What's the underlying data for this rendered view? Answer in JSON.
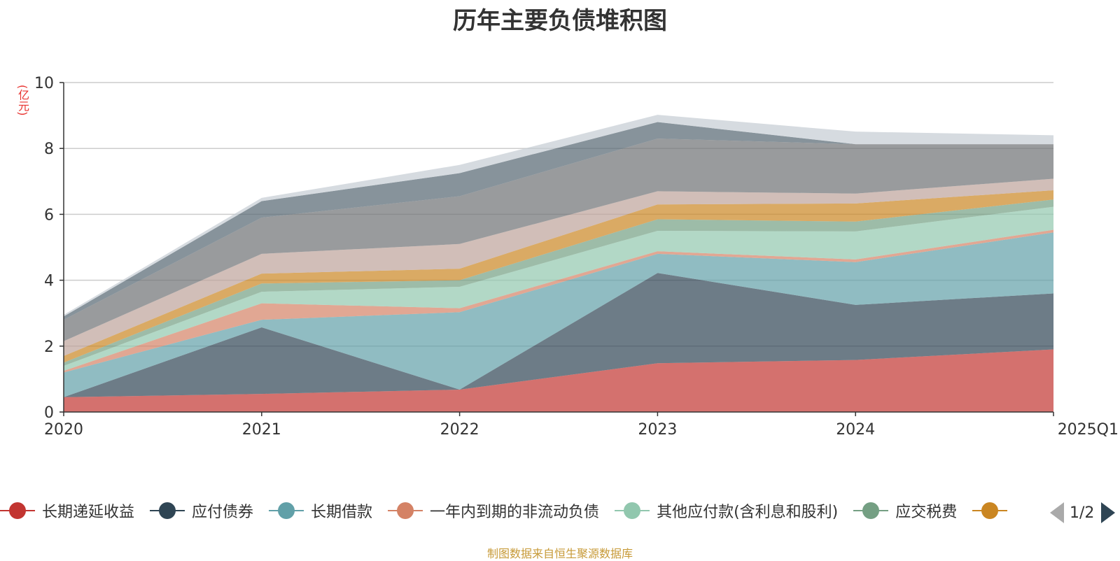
{
  "chart_data": {
    "type": "area",
    "title": "历年主要负债堆积图",
    "ylabel": "(亿元)",
    "xlabel": "",
    "ylim": [
      0,
      10
    ],
    "yticks": [
      0,
      2,
      4,
      6,
      8,
      10
    ],
    "categories": [
      "2020",
      "2021",
      "2022",
      "2023",
      "2024",
      "2025Q1"
    ],
    "stacked": true,
    "grid": true,
    "series": [
      {
        "name": "长期递延收益",
        "color": "#c23531",
        "values": [
          0.45,
          0.55,
          0.68,
          1.48,
          1.58,
          1.9
        ]
      },
      {
        "name": "应付债券",
        "color": "#2f4554",
        "values": [
          0.0,
          2.02,
          0.0,
          2.74,
          1.67,
          1.7
        ]
      },
      {
        "name": "长期借款",
        "color": "#61a0a8",
        "values": [
          0.75,
          0.23,
          2.35,
          0.58,
          1.3,
          1.85
        ]
      },
      {
        "name": "一年内到期的非流动负债",
        "color": "#d48265",
        "values": [
          0.05,
          0.5,
          0.12,
          0.08,
          0.08,
          0.08
        ]
      },
      {
        "name": "其他应付款(含利息和股利)",
        "color": "#91c7ae",
        "values": [
          0.15,
          0.35,
          0.65,
          0.62,
          0.85,
          0.7
        ]
      },
      {
        "name": "应交税费",
        "color": "#749f83",
        "values": [
          0.1,
          0.25,
          0.2,
          0.35,
          0.3,
          0.22
        ]
      },
      {
        "name": "",
        "color": "#ca8622",
        "values": [
          0.2,
          0.3,
          0.35,
          0.45,
          0.55,
          0.28
        ]
      },
      {
        "name": "",
        "color": "#bda29a",
        "values": [
          0.45,
          0.6,
          0.75,
          0.4,
          0.3,
          0.35
        ]
      },
      {
        "name": "",
        "color": "#6e7074",
        "values": [
          0.65,
          1.1,
          1.45,
          1.6,
          1.5,
          1.05
        ]
      },
      {
        "name": "",
        "color": "#546570",
        "values": [
          0.1,
          0.5,
          0.7,
          0.5,
          0.0,
          0.0
        ]
      },
      {
        "name": "",
        "color": "#c4ccd3",
        "values": [
          0.05,
          0.1,
          0.25,
          0.22,
          0.38,
          0.27
        ]
      }
    ]
  },
  "legend": {
    "visible_items": [
      "长期递延收益",
      "应付债券",
      "长期借款",
      "一年内到期的非流动负债",
      "其他应付款(含利息和股利)",
      "应交税费"
    ],
    "page_text": "1/2"
  },
  "source_note": "制图数据来自恒生聚源数据库"
}
